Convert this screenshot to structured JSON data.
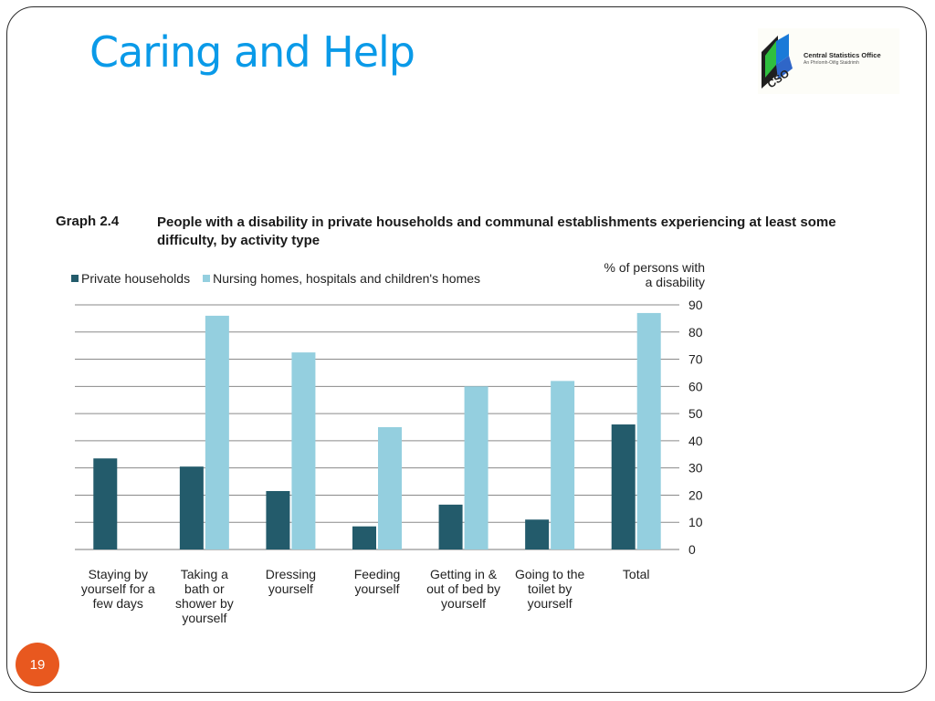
{
  "slide": {
    "title": "Caring and Help",
    "page_number": "19"
  },
  "logo": {
    "name": "Central Statistics Office",
    "subtitle": "An Phríomh-Oifig Staidrimh",
    "letters": "CSO"
  },
  "graph": {
    "label": "Graph 2.4",
    "title": "People with a disability in private households and communal establishments experiencing at least some difficulty, by activity type"
  },
  "colors": {
    "accent": "#0a9ae8",
    "private": "#235b6b",
    "nursing": "#94cfdf",
    "page_badge": "#e8581f"
  },
  "chart_data": {
    "type": "bar",
    "title": "People with a disability in private households and communal establishments experiencing at least some difficulty, by activity type",
    "ylabel": "% of persons with a disability",
    "ylim": [
      0,
      90
    ],
    "yticks": [
      0,
      10,
      20,
      30,
      40,
      50,
      60,
      70,
      80,
      90
    ],
    "grid": true,
    "legend_position": "top-left",
    "y_axis_side": "right",
    "categories": [
      "Staying by yourself for a few days",
      "Taking a bath or shower by yourself",
      "Dressing yourself",
      "Feeding yourself",
      "Getting in & out of bed by yourself",
      "Going to the toilet by yourself",
      "Total"
    ],
    "category_lines": [
      [
        "Staying by",
        "yourself for a",
        "few days"
      ],
      [
        "Taking a",
        "bath or",
        "shower by",
        "yourself"
      ],
      [
        "Dressing",
        "yourself"
      ],
      [
        "Feeding",
        "yourself"
      ],
      [
        "Getting in &",
        "out of bed by",
        "yourself"
      ],
      [
        "Going to the",
        "toilet by",
        "yourself"
      ],
      [
        "Total"
      ]
    ],
    "series": [
      {
        "name": "Private households",
        "values": [
          33.5,
          30.5,
          21.5,
          8.5,
          16.5,
          11,
          46
        ]
      },
      {
        "name": "Nursing homes, hospitals and children's homes",
        "values": [
          null,
          86,
          72.5,
          45,
          60,
          62,
          87
        ]
      }
    ]
  }
}
